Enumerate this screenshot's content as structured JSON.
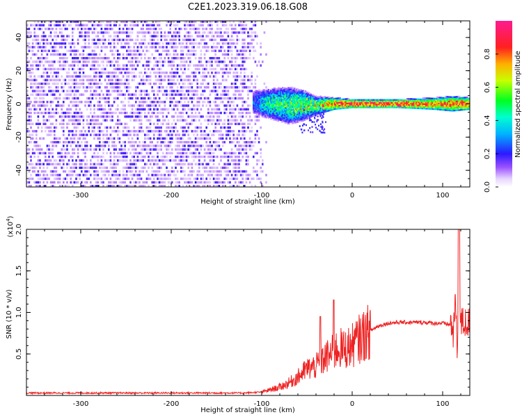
{
  "figure_title": "C2E1.2023.319.06.18.G08",
  "colors": {
    "line": "#ee2222",
    "axis": "#000000",
    "noise_light": "#e8d4ff",
    "noise_dark": "#6a00f0",
    "colormap": [
      "#ffffff",
      "#f0e4ff",
      "#c79cff",
      "#7f1aff",
      "#1a1aff",
      "#00c8ff",
      "#00ff40",
      "#c8ff00",
      "#ffb000",
      "#ff2020",
      "#ff20a0"
    ]
  },
  "chart_data": [
    {
      "type": "heatmap",
      "title": "",
      "xlabel": "Height of straight line (km)",
      "ylabel": "Frequency (Hz)",
      "xlim": [
        -360,
        130
      ],
      "ylim": [
        -50,
        50
      ],
      "x_ticks": [
        -300,
        -200,
        -100,
        0,
        100
      ],
      "y_ticks": [
        -40,
        -20,
        0,
        20,
        40
      ],
      "colorbar": {
        "label": "Normalized spectral amplitude",
        "range": [
          0.0,
          1.0
        ],
        "ticks": [
          "0.0",
          "0.2",
          "0.4",
          "0.6",
          "0.8"
        ],
        "tick_values": [
          0.0,
          0.2,
          0.4,
          0.6,
          0.8
        ]
      },
      "noise_region": {
        "x_range": [
          -360,
          -95
        ],
        "amplitude": [
          0.02,
          0.1
        ]
      },
      "signal_band": [
        {
          "x": -110,
          "freq": 1,
          "width": 8,
          "amp": 0.25
        },
        {
          "x": -90,
          "freq": 0,
          "width": 10,
          "amp": 0.45
        },
        {
          "x": -70,
          "freq": -1,
          "width": 12,
          "amp": 0.5
        },
        {
          "x": -55,
          "freq": -1,
          "width": 10,
          "amp": 0.55
        },
        {
          "x": -40,
          "freq": -1,
          "width": 6,
          "amp": 0.55
        },
        {
          "x": -20,
          "freq": 0,
          "width": 4,
          "amp": 0.8
        },
        {
          "x": 0,
          "freq": 0,
          "width": 3,
          "amp": 0.85
        },
        {
          "x": 50,
          "freq": 0,
          "width": 3,
          "amp": 0.85
        },
        {
          "x": 90,
          "freq": 0,
          "width": 4,
          "amp": 0.75
        },
        {
          "x": 110,
          "freq": 0,
          "width": 5,
          "amp": 0.8
        },
        {
          "x": 130,
          "freq": 0,
          "width": 4,
          "amp": 0.85
        }
      ]
    },
    {
      "type": "line",
      "title": "",
      "xlabel": "Height of straight line (km)",
      "ylabel": "SNR (10 * v/v)",
      "y_multiplier_label": "(x10",
      "y_multiplier_exp": "4",
      "y_multiplier_close": ")",
      "xlim": [
        -360,
        130
      ],
      "ylim": [
        0,
        20000
      ],
      "x_ticks": [
        -300,
        -200,
        -100,
        0,
        100
      ],
      "y_ticks": [
        5000,
        10000,
        15000,
        20000
      ],
      "y_tick_labels": [
        "0.5",
        "1.0",
        "1.5",
        "2.0"
      ],
      "series": [
        {
          "x": [
            -360,
            -300,
            -200,
            -120,
            -100,
            -80,
            -70,
            -60,
            -50,
            -40,
            -30,
            -20,
            -15,
            -10,
            0,
            10,
            20,
            30,
            40,
            50,
            60,
            70,
            80,
            90,
            100,
            105,
            110,
            112,
            114,
            116,
            118,
            120,
            130
          ],
          "y": [
            300,
            300,
            300,
            300,
            400,
            1000,
            1500,
            2200,
            3200,
            3500,
            4500,
            5200,
            5800,
            5500,
            6000,
            7000,
            7800,
            8400,
            8700,
            8800,
            8800,
            8800,
            8800,
            8700,
            8700,
            8600,
            8500,
            7000,
            12000,
            5000,
            11000,
            8700,
            8700
          ]
        }
      ]
    }
  ]
}
